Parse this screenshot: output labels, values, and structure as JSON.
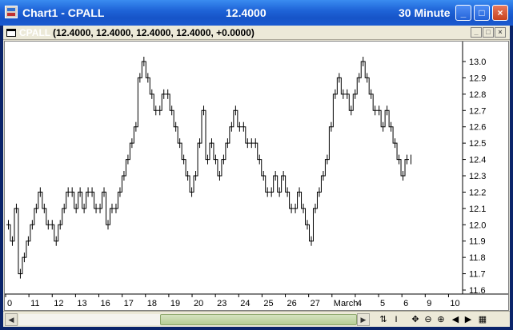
{
  "window": {
    "title": "Chart1 - CPALL",
    "price": "12.4000",
    "interval": "30 Minute",
    "buttons": {
      "minimize": "_",
      "maximize": "□",
      "close": "×"
    }
  },
  "subwindow": {
    "symbol": "CPALL",
    "quote": "(12.4000, 12.4000, 12.4000, 12.4000, +0.0000)",
    "buttons": {
      "minimize": "_",
      "restore": "□",
      "close": "×"
    }
  },
  "chart_data": {
    "type": "line",
    "price_axis": {
      "min": 11.6,
      "max": 13.0,
      "ticks": [
        "13.0",
        "12.9",
        "12.8",
        "12.7",
        "12.6",
        "12.5",
        "12.4",
        "12.3",
        "12.2",
        "12.1",
        "12.0",
        "11.9",
        "11.8",
        "11.7",
        "11.6"
      ]
    },
    "x_labels": [
      "0",
      "11",
      "12",
      "13",
      "16",
      "17",
      "18",
      "19",
      "20",
      "23",
      "24",
      "25",
      "26",
      "27",
      "March",
      "4",
      "5",
      "6",
      "9",
      "10"
    ],
    "series": [
      {
        "values": [
          12.0,
          11.9,
          12.1,
          11.7,
          11.8,
          11.9,
          12.0,
          12.1,
          12.2,
          12.1,
          12.0,
          12.0,
          11.9,
          12.0,
          12.1,
          12.2,
          12.2,
          12.1,
          12.2,
          12.1,
          12.2,
          12.2,
          12.1,
          12.1,
          12.2,
          12.0,
          12.1,
          12.1,
          12.2,
          12.3,
          12.4,
          12.5,
          12.6,
          12.9,
          13.0,
          12.9,
          12.8,
          12.7,
          12.7,
          12.8,
          12.8,
          12.7,
          12.6,
          12.5,
          12.4,
          12.3,
          12.2,
          12.3,
          12.5,
          12.7,
          12.4,
          12.5,
          12.4,
          12.3,
          12.4,
          12.5,
          12.6,
          12.7,
          12.6,
          12.6,
          12.5,
          12.5,
          12.5,
          12.4,
          12.3,
          12.2,
          12.2,
          12.3,
          12.2,
          12.3,
          12.2,
          12.1,
          12.1,
          12.2,
          12.1,
          12.0,
          11.9,
          12.1,
          12.2,
          12.3,
          12.4,
          12.6,
          12.8,
          12.9,
          12.8,
          12.8,
          12.7,
          12.8,
          12.9,
          13.0,
          12.9,
          12.8,
          12.7,
          12.7,
          12.6,
          12.7,
          12.6,
          12.5,
          12.4,
          12.3,
          12.4,
          12.4
        ]
      }
    ],
    "last_value": 12.4
  },
  "bottom": {
    "tools": [
      "zoom-reset",
      "cursor",
      "pan",
      "zoom-out",
      "zoom-in"
    ],
    "tool_glyphs": [
      "⇅",
      "I",
      "✥",
      "⊖",
      "⊕"
    ],
    "nav_glyphs": [
      "◀",
      "▶",
      "▦"
    ]
  }
}
